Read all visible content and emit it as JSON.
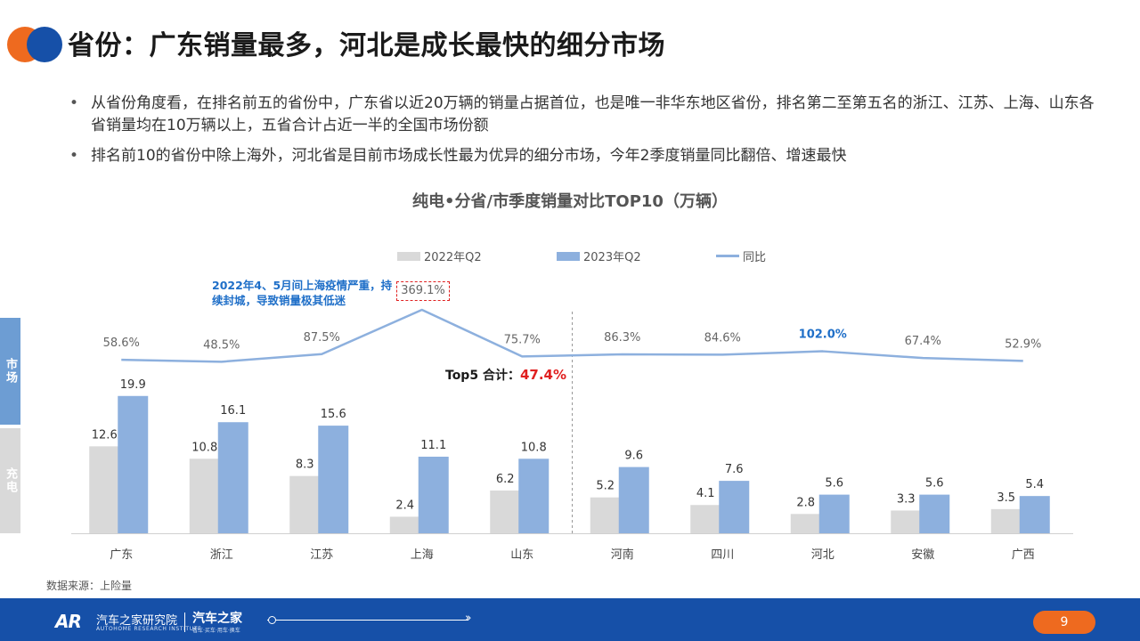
{
  "title": "省份：广东销量最多，河北是成长最快的细分市场",
  "bullets": [
    "从省份角度看，在排名前五的省份中，广东省以近20万辆的销量占据首位，也是唯一非华东地区省份，排名第二至第五名的浙江、江苏、上海、山东各省销量均在10万辆以上，五省合计占近一半的全国市场份额",
    "排名前10的省份中除上海外，河北省是目前市场成长性最为优异的细分市场，今年2季度销量同比翻倍、增速最快"
  ],
  "side_tabs": {
    "top": "市场",
    "bottom": "充电"
  },
  "annotation": "2022年4、5月间上海疫情严重，持续封城，导致销量极其低迷",
  "top5_label": "Top5 合计：",
  "top5_value": "47.4%",
  "source": "数据来源：上险量",
  "footer": {
    "logo": "AR",
    "institute": "汽车之家研究院",
    "institute_en": "AUTOHOME RESEARCH INSTITUTE",
    "brand": "汽车之家",
    "brand_sub": "看车·买车·用车·换车",
    "page_number": "9"
  },
  "colors": {
    "q2_2022": "#d9d9d9",
    "q2_2023": "#8db0de",
    "yoy": "#8db0de",
    "highlight": "#1f6fc8",
    "accent_red": "#e02020",
    "brand_blue": "#1650a8",
    "brand_orange": "#ee6a1f"
  },
  "chart_data": {
    "type": "bar",
    "title": "纯电•分省/市季度销量对比TOP10（万辆）",
    "categories": [
      "广东",
      "浙江",
      "江苏",
      "上海",
      "山东",
      "河南",
      "四川",
      "河北",
      "安徽",
      "广西"
    ],
    "series": [
      {
        "name": "2022年Q2",
        "type": "bar",
        "values": [
          12.6,
          10.8,
          8.3,
          2.4,
          6.2,
          5.2,
          4.1,
          2.8,
          3.3,
          3.5
        ]
      },
      {
        "name": "2023年Q2",
        "type": "bar",
        "values": [
          19.9,
          16.1,
          15.6,
          11.1,
          10.8,
          9.6,
          7.6,
          5.6,
          5.6,
          5.4
        ]
      },
      {
        "name": "同比",
        "type": "line",
        "values": [
          58.6,
          48.5,
          87.5,
          369.1,
          75.7,
          86.3,
          84.6,
          102.0,
          67.4,
          52.9
        ],
        "labels": [
          "58.6%",
          "48.5%",
          "87.5%",
          "369.1%",
          "75.7%",
          "86.3%",
          "84.6%",
          "102.0%",
          "67.4%",
          "52.9%"
        ]
      }
    ],
    "highlighted_category": "河北",
    "divider_after": "山东",
    "legend_position": "top-center",
    "grid": false
  }
}
